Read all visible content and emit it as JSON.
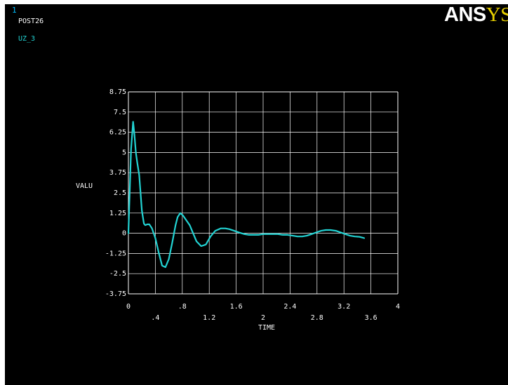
{
  "window": {
    "number": "1",
    "module": "POST26",
    "variable": "UZ_3",
    "logo_a": "A",
    "logo_n": "N",
    "logo_s": "S",
    "logo_ys": "YS"
  },
  "colors": {
    "background": "#000000",
    "grid": "#ffffff",
    "curve": "#22d3d3",
    "variable_label": "#22d3d3",
    "window_number": "#00bfff",
    "logo_accent": "#e8d000"
  },
  "chart_data": {
    "type": "line",
    "title": "",
    "xlabel": "TIME",
    "ylabel": "VALU",
    "xlim": [
      0,
      4
    ],
    "ylim": [
      -3.75,
      8.75
    ],
    "grid": true,
    "x_ticks_upper": [
      "0",
      ".8",
      "1.6",
      "2.4",
      "3.2",
      "4"
    ],
    "x_ticks_lower": [
      ".4",
      "1.2",
      "2",
      "2.8",
      "3.6"
    ],
    "y_ticks": [
      "8.75",
      "7.5",
      "6.25",
      "5",
      "3.75",
      "2.5",
      "1.25",
      "0",
      "-1.25",
      "-2.5",
      "-3.75"
    ],
    "series": [
      {
        "name": "UZ_3",
        "x": [
          0,
          0.04,
          0.07,
          0.09,
          0.11,
          0.13,
          0.16,
          0.2,
          0.23,
          0.25,
          0.28,
          0.31,
          0.35,
          0.4,
          0.45,
          0.5,
          0.55,
          0.6,
          0.65,
          0.7,
          0.73,
          0.77,
          0.81,
          0.86,
          0.91,
          0.96,
          1.01,
          1.08,
          1.15,
          1.22,
          1.29,
          1.37,
          1.44,
          1.5,
          1.57,
          1.64,
          1.72,
          1.79,
          1.86,
          1.93,
          2.0,
          2.08,
          2.15,
          2.22,
          2.29,
          2.36,
          2.44,
          2.51,
          2.58,
          2.65,
          2.72,
          2.79,
          2.86,
          2.93,
          3.0,
          3.08,
          3.15,
          3.22,
          3.29,
          3.36,
          3.43,
          3.5
        ],
        "y": [
          0,
          5.2,
          6.9,
          6.1,
          5.0,
          4.4,
          3.6,
          1.4,
          0.6,
          0.5,
          0.55,
          0.55,
          0.3,
          -0.3,
          -1.2,
          -2.0,
          -2.1,
          -1.6,
          -0.6,
          0.5,
          1.0,
          1.25,
          1.1,
          0.8,
          0.5,
          0.0,
          -0.5,
          -0.8,
          -0.7,
          -0.2,
          0.15,
          0.3,
          0.3,
          0.25,
          0.15,
          0.05,
          -0.05,
          -0.1,
          -0.1,
          -0.1,
          -0.05,
          -0.05,
          -0.05,
          -0.05,
          -0.1,
          -0.1,
          -0.15,
          -0.2,
          -0.2,
          -0.15,
          -0.05,
          0.05,
          0.15,
          0.2,
          0.2,
          0.15,
          0.05,
          -0.05,
          -0.15,
          -0.2,
          -0.22,
          -0.3
        ]
      }
    ]
  }
}
